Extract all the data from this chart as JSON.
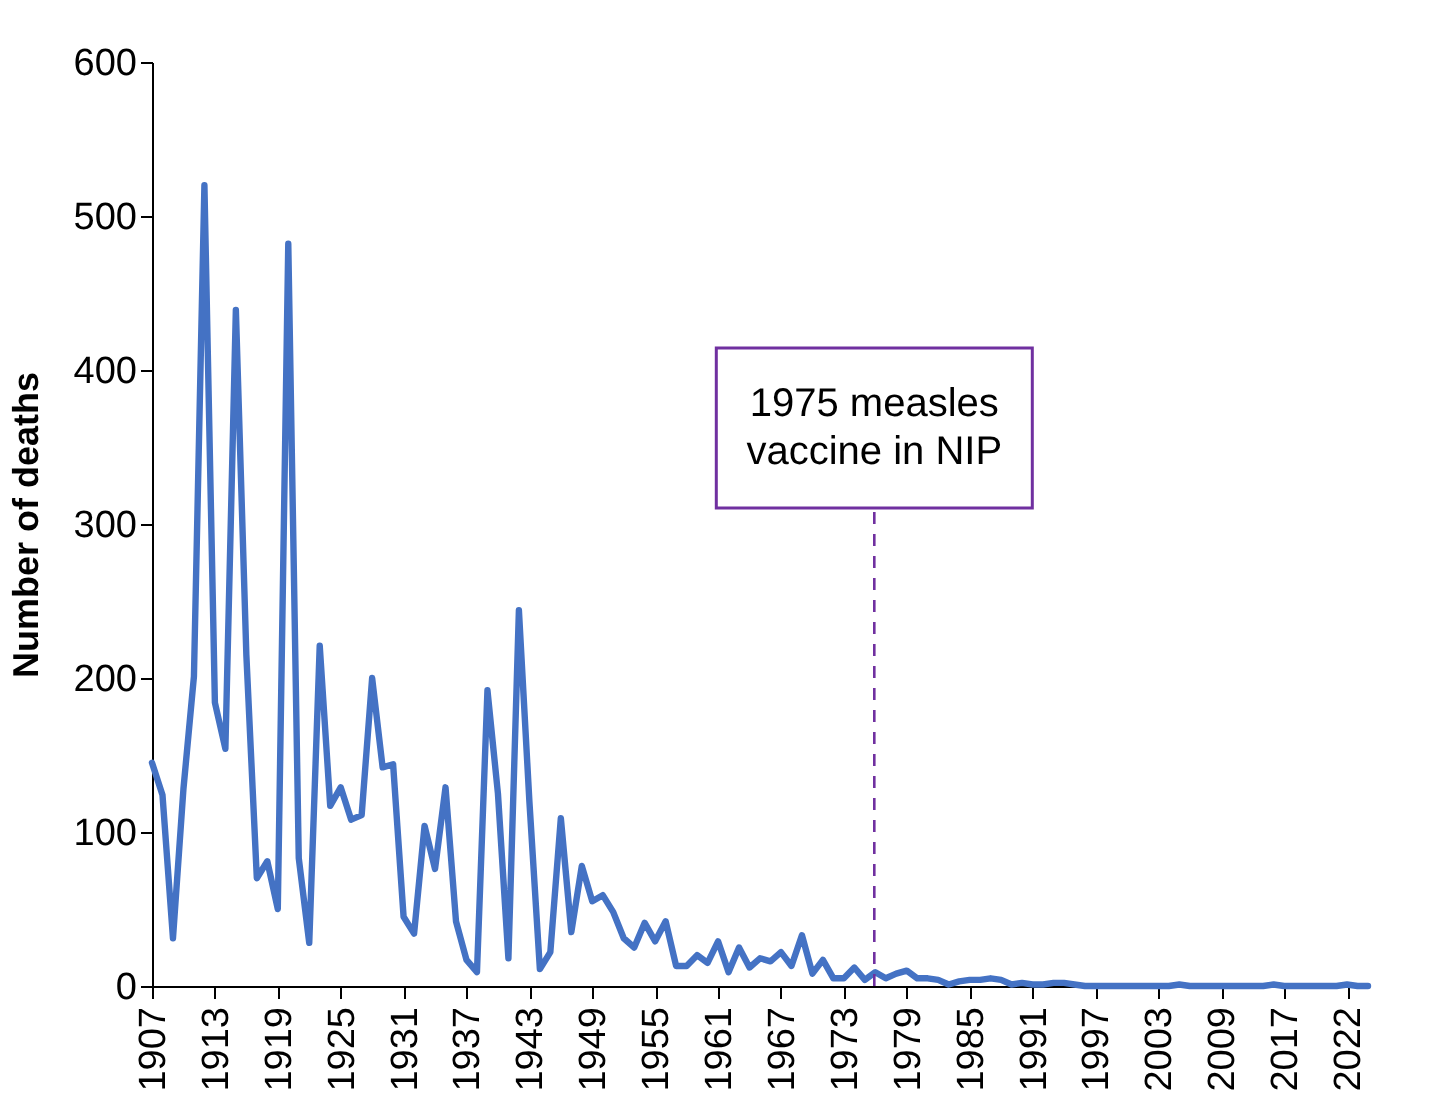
{
  "chart_data": {
    "type": "line",
    "ylabel": "Number of deaths",
    "categories": [
      "1907",
      null,
      null,
      null,
      null,
      null,
      "1913",
      null,
      null,
      null,
      null,
      null,
      "1919",
      null,
      null,
      null,
      null,
      null,
      "1925",
      null,
      null,
      null,
      null,
      null,
      "1931",
      null,
      null,
      null,
      null,
      null,
      "1937",
      null,
      null,
      null,
      null,
      null,
      "1943",
      null,
      null,
      null,
      null,
      null,
      "1949",
      null,
      null,
      null,
      null,
      null,
      "1955",
      null,
      null,
      null,
      null,
      null,
      "1961",
      null,
      null,
      null,
      null,
      null,
      "1967",
      null,
      null,
      null,
      null,
      null,
      "1973",
      null,
      null,
      null,
      null,
      null,
      "1979",
      null,
      null,
      null,
      null,
      null,
      "1985",
      null,
      null,
      null,
      null,
      null,
      "1991",
      null,
      null,
      null,
      null,
      null,
      "1997",
      null,
      null,
      null,
      null,
      null,
      "2003",
      null,
      null,
      null,
      null,
      null,
      "2009",
      null,
      null,
      null,
      null,
      null,
      "2017",
      null,
      null,
      null,
      null,
      null,
      "2022",
      null,
      null
    ],
    "series": [
      {
        "color": "#4472c4",
        "values": [
          145,
          124,
          31,
          128,
          201,
          520,
          184,
          154,
          439,
          215,
          70,
          81,
          50,
          482,
          83,
          28,
          221,
          117,
          129,
          108,
          111,
          200,
          142,
          144,
          45,
          34,
          104,
          76,
          129,
          42,
          17,
          9,
          192,
          125,
          18,
          244,
          120,
          11,
          22,
          109,
          35,
          78,
          55,
          59,
          48,
          31,
          25,
          41,
          29,
          42,
          13,
          13,
          20,
          15,
          29,
          9,
          25,
          12,
          18,
          16,
          22,
          13,
          33,
          8,
          17,
          5,
          5,
          12,
          4,
          9,
          5,
          8,
          10,
          5,
          5,
          4,
          1,
          3,
          4,
          4,
          5,
          4,
          1,
          2,
          1,
          1,
          2,
          2,
          1,
          0,
          0,
          0,
          0,
          0,
          0,
          0,
          0,
          0,
          1,
          0,
          0,
          0,
          0,
          0,
          0,
          0,
          0,
          1,
          0,
          0,
          0,
          0,
          0,
          0,
          1,
          0,
          0
        ]
      }
    ],
    "ylim": [
      0,
      600
    ],
    "yticks": [
      0,
      100,
      200,
      300,
      400,
      500,
      600
    ],
    "annotations": [
      {
        "text": "1975 measles vaccine in NIP",
        "y": 0
      }
    ],
    "grid": false,
    "marker": "none",
    "line_style": "solid"
  }
}
